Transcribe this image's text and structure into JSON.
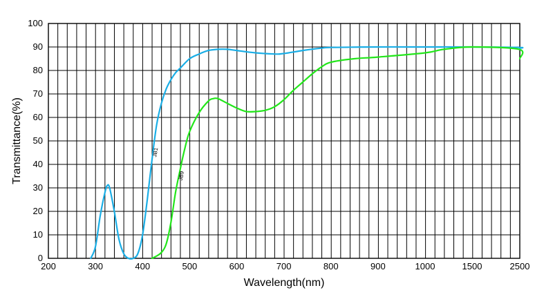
{
  "chart_data": {
    "type": "line",
    "xlabel": "Wavelength(nm)",
    "ylabel": "Transmittance(%)",
    "x_ticks": [
      "200",
      "300",
      "400",
      "500",
      "600",
      "700",
      "800",
      "900",
      "1000",
      "1500",
      "2000",
      "2500"
    ],
    "y_ticks": [
      "0",
      "10",
      "20",
      "30",
      "40",
      "50",
      "60",
      "70",
      "80",
      "90",
      "100"
    ],
    "ylim": [
      0,
      100
    ],
    "x_scale": "piecewise: 200-1000 nm linear, 1000-2500 nm compressed",
    "grid": true,
    "series": [
      {
        "name": "JB1",
        "color": "#1aaee6",
        "x": [
          290,
          300,
          310,
          320,
          325,
          330,
          340,
          350,
          360,
          370,
          380,
          390,
          400,
          410,
          420,
          430,
          440,
          450,
          460,
          470,
          480,
          500,
          520,
          540,
          560,
          580,
          600,
          640,
          680,
          700,
          740,
          780,
          800,
          900,
          1000,
          1500,
          2000,
          2500
        ],
        "y": [
          0,
          5,
          18,
          28,
          31,
          30,
          20,
          8,
          2,
          0,
          0,
          2,
          10,
          25,
          42,
          57,
          66,
          72,
          76,
          79,
          81,
          85,
          87,
          88.5,
          89,
          89,
          88.5,
          87.5,
          87,
          87.2,
          88.5,
          89.5,
          89.8,
          90,
          90,
          90,
          89.8,
          89.5
        ]
      },
      {
        "name": "JB9",
        "color": "#22e61a",
        "x": [
          420,
          430,
          440,
          450,
          460,
          470,
          480,
          490,
          500,
          520,
          540,
          550,
          560,
          580,
          600,
          620,
          640,
          660,
          680,
          700,
          720,
          740,
          760,
          780,
          800,
          850,
          900,
          1000,
          1200,
          1500,
          2000,
          2500
        ],
        "y": [
          0,
          1,
          2.5,
          6,
          15,
          28,
          38,
          47,
          54,
          62,
          67,
          68,
          68,
          66,
          64,
          62.5,
          62.5,
          63,
          64.5,
          67.5,
          71.5,
          75,
          78.5,
          81.5,
          83.5,
          85,
          85.7,
          87.5,
          89,
          90,
          89,
          85
        ]
      }
    ]
  }
}
